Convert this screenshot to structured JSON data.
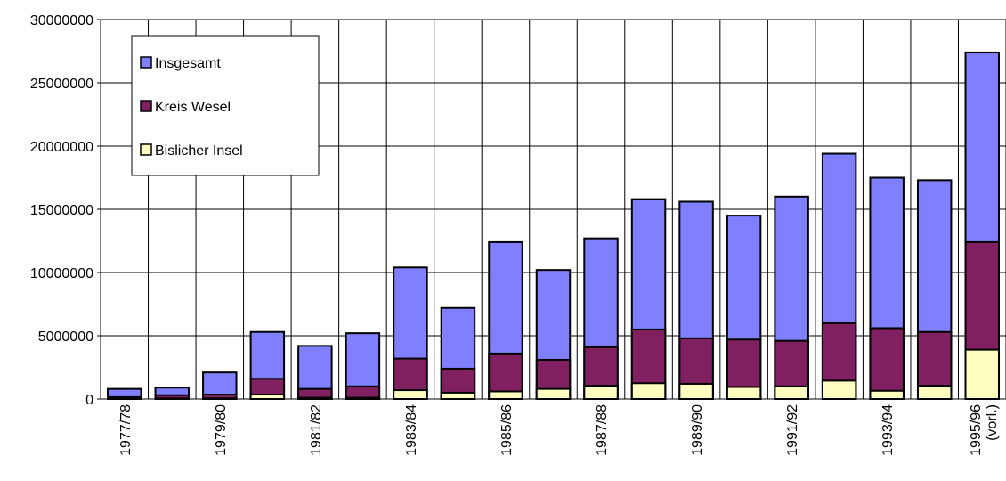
{
  "chart_data": {
    "type": "bar",
    "overlap": true,
    "categories": [
      "1977/78",
      null,
      "1979/80",
      null,
      "1981/82",
      null,
      "1983/84",
      null,
      "1985/86",
      null,
      "1987/88",
      null,
      "1989/90",
      null,
      "1991/92",
      null,
      "1993/94",
      null,
      "1995/96 (vorl.)"
    ],
    "series": [
      {
        "name": "Insgesamt",
        "color": "#8080ff",
        "values": [
          800000,
          900000,
          2100000,
          5300000,
          4200000,
          5200000,
          10400000,
          7200000,
          12400000,
          10200000,
          12700000,
          15800000,
          15600000,
          14500000,
          16000000,
          19400000,
          17500000,
          17300000,
          27400000
        ]
      },
      {
        "name": "Kreis Wesel",
        "color": "#802060",
        "values": [
          150000,
          300000,
          350000,
          1600000,
          800000,
          1000000,
          3200000,
          2400000,
          3600000,
          3100000,
          4100000,
          5500000,
          4800000,
          4700000,
          4600000,
          6000000,
          5600000,
          5300000,
          12400000
        ]
      },
      {
        "name": "Bislicher Insel",
        "color": "#ffffc0",
        "values": [
          0,
          50000,
          50000,
          350000,
          100000,
          100000,
          700000,
          500000,
          600000,
          800000,
          1050000,
          1250000,
          1200000,
          950000,
          1000000,
          1450000,
          650000,
          1050000,
          3900000
        ]
      }
    ],
    "ylim": [
      0,
      30000000
    ],
    "yticks": [
      0,
      5000000,
      10000000,
      15000000,
      20000000,
      25000000,
      30000000
    ],
    "grid": true,
    "legend": "top-left"
  }
}
